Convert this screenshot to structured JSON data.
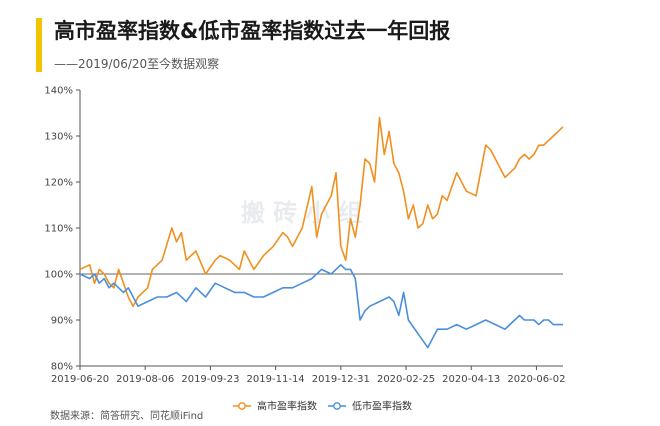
{
  "header": {
    "title": "高市盈率指数&低市盈率指数过去一年回报",
    "subtitle": "——2019/06/20至今数据观察",
    "accent_color": "#f5c400"
  },
  "footer": {
    "source": "数据来源：简答研究、同花顺iFind"
  },
  "watermark": "搬 砖 小 组",
  "chart_data": {
    "type": "line",
    "title": "高市盈率指数&低市盈率指数过去一年回报",
    "subtitle": "——2019/06/20至今数据观察",
    "xlabel": "",
    "ylabel": "",
    "ylim": [
      80,
      140
    ],
    "yticks": [
      80,
      90,
      100,
      110,
      120,
      130,
      140
    ],
    "ytick_labels": [
      "80%",
      "90%",
      "100%",
      "110%",
      "120%",
      "130%",
      "140%"
    ],
    "xlim": [
      0,
      100
    ],
    "xticks": [
      0,
      13.5,
      27,
      40.5,
      54,
      67.5,
      81,
      94.5
    ],
    "xtick_labels": [
      "2019-06-20",
      "2019-08-06",
      "2019-09-23",
      "2019-11-14",
      "2019-12-31",
      "2020-02-25",
      "2020-04-13",
      "2020-06-02"
    ],
    "baseline": 100,
    "grid": false,
    "legend_position": "bottom",
    "series": [
      {
        "name": "高市盈率指数",
        "color": "#f0901f",
        "x": [
          0,
          2,
          3,
          4,
          5,
          6,
          7,
          8,
          9,
          10,
          11,
          12,
          13,
          14,
          15,
          17,
          19,
          20,
          21,
          22,
          24,
          26,
          28,
          29,
          31,
          33,
          34,
          36,
          38,
          40,
          42,
          43,
          44,
          46,
          48,
          49,
          50,
          52,
          53,
          54,
          55,
          56,
          57,
          58,
          59,
          60,
          61,
          62,
          63,
          64,
          65,
          66,
          67,
          68,
          69,
          70,
          71,
          72,
          73,
          74,
          75,
          76,
          78,
          80,
          82,
          84,
          85,
          86,
          88,
          90,
          91,
          92,
          93,
          94,
          95,
          96,
          97,
          98,
          99,
          100
        ],
        "values": [
          101,
          102,
          98,
          101,
          100,
          98,
          97,
          101,
          98,
          95,
          93,
          95,
          96,
          97,
          101,
          103,
          110,
          107,
          109,
          103,
          105,
          100,
          103,
          104,
          103,
          101,
          105,
          101,
          104,
          106,
          109,
          108,
          106,
          110,
          119,
          108,
          113,
          117,
          122,
          106,
          103,
          112,
          108,
          115,
          125,
          124,
          120,
          134,
          126,
          131,
          124,
          122,
          118,
          112,
          115,
          110,
          111,
          115,
          112,
          113,
          117,
          116,
          122,
          118,
          117,
          128,
          127,
          125,
          121,
          123,
          125,
          126,
          125,
          126,
          128,
          128,
          129,
          130,
          131,
          132
        ]
      },
      {
        "name": "低市盈率指数",
        "color": "#4a8fdc",
        "x": [
          0,
          2,
          3,
          4,
          5,
          6,
          7,
          8,
          9,
          10,
          12,
          14,
          16,
          18,
          20,
          22,
          24,
          26,
          28,
          30,
          32,
          34,
          36,
          38,
          40,
          42,
          44,
          46,
          48,
          50,
          52,
          54,
          55,
          56,
          57,
          58,
          59,
          60,
          62,
          64,
          65,
          66,
          67,
          68,
          70,
          72,
          74,
          76,
          78,
          80,
          82,
          84,
          86,
          88,
          90,
          91,
          92,
          94,
          95,
          96,
          97,
          98,
          99,
          100
        ],
        "values": [
          100,
          99,
          100,
          98,
          99,
          97,
          98,
          97,
          96,
          97,
          93,
          94,
          95,
          95,
          96,
          94,
          97,
          95,
          98,
          97,
          96,
          96,
          95,
          95,
          96,
          97,
          97,
          98,
          99,
          101,
          100,
          102,
          101,
          101,
          99,
          90,
          92,
          93,
          94,
          95,
          94,
          91,
          96,
          90,
          87,
          84,
          88,
          88,
          89,
          88,
          89,
          90,
          89,
          88,
          90,
          91,
          90,
          90,
          89,
          90,
          90,
          89,
          89,
          89
        ]
      }
    ]
  }
}
